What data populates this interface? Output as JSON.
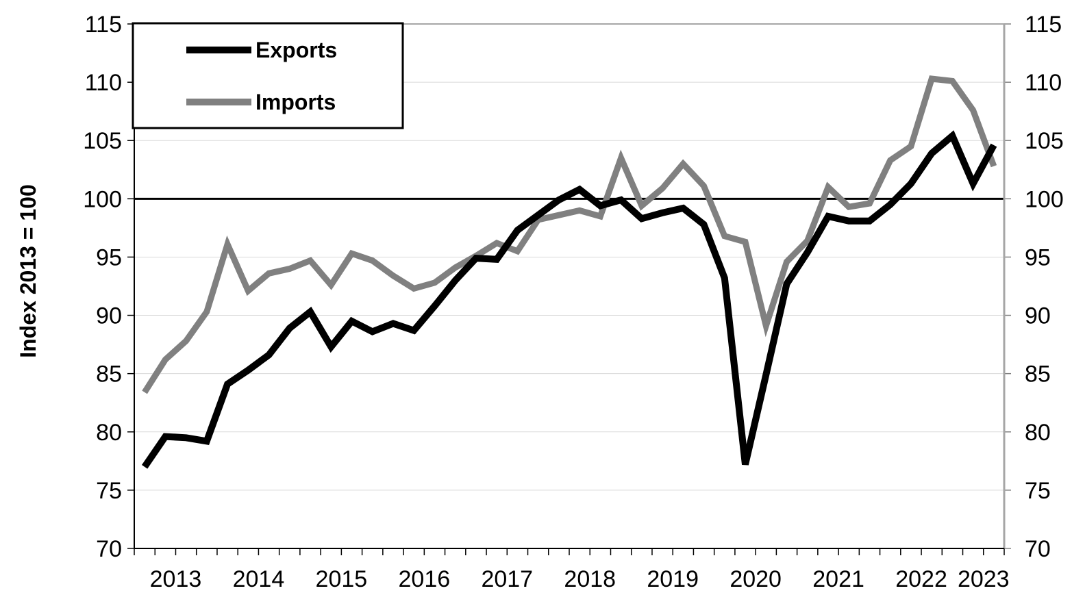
{
  "chart_data": {
    "type": "line",
    "title": "",
    "xlabel": "",
    "ylabel": "Index 2013 = 100",
    "ylim": [
      70,
      115
    ],
    "yticks": [
      "70",
      "75",
      "80",
      "85",
      "90",
      "95",
      "100",
      "105",
      "110",
      "115"
    ],
    "x_tick_labels": [
      "2013",
      "2014",
      "2015",
      "2016",
      "2017",
      "2018",
      "2019",
      "2020",
      "2021",
      "2022",
      "2023"
    ],
    "x": [
      "2013Q1",
      "2013Q2",
      "2013Q3",
      "2013Q4",
      "2014Q1",
      "2014Q2",
      "2014Q3",
      "2014Q4",
      "2015Q1",
      "2015Q2",
      "2015Q3",
      "2015Q4",
      "2016Q1",
      "2016Q2",
      "2016Q3",
      "2016Q4",
      "2017Q1",
      "2017Q2",
      "2017Q3",
      "2017Q4",
      "2018Q1",
      "2018Q2",
      "2018Q3",
      "2018Q4",
      "2019Q1",
      "2019Q2",
      "2019Q3",
      "2019Q4",
      "2020Q1",
      "2020Q2",
      "2020Q3",
      "2020Q4",
      "2021Q1",
      "2021Q2",
      "2021Q3",
      "2021Q4",
      "2022Q1",
      "2022Q2",
      "2022Q3",
      "2022Q4",
      "2023Q1",
      "2023Q2"
    ],
    "series": [
      {
        "name": "Exports",
        "color": "#000000",
        "values": [
          77.0,
          79.6,
          79.5,
          79.2,
          84.1,
          85.3,
          86.6,
          88.9,
          90.3,
          87.3,
          89.5,
          88.6,
          89.3,
          88.7,
          90.8,
          93.0,
          94.9,
          94.8,
          97.3,
          98.6,
          99.9,
          100.8,
          99.4,
          99.9,
          98.3,
          98.8,
          99.2,
          97.8,
          93.2,
          77.2,
          84.9,
          92.7,
          95.4,
          98.5,
          98.1,
          98.1,
          99.5,
          101.3,
          103.9,
          105.4,
          101.3,
          104.6
        ]
      },
      {
        "name": "Imports",
        "color": "#808080",
        "values": [
          83.4,
          86.2,
          87.8,
          90.3,
          96.1,
          92.1,
          93.6,
          94.0,
          94.7,
          92.6,
          95.3,
          94.7,
          93.4,
          92.3,
          92.8,
          94.1,
          95.1,
          96.2,
          95.5,
          98.2,
          98.6,
          99.0,
          98.5,
          103.5,
          99.4,
          100.9,
          103.0,
          101.1,
          96.8,
          96.3,
          89.1,
          94.6,
          96.4,
          101.0,
          99.3,
          99.6,
          103.3,
          104.5,
          110.3,
          110.1,
          107.6,
          102.8
        ]
      }
    ],
    "reference_line": 100,
    "grid": true,
    "legend": "top-left"
  }
}
